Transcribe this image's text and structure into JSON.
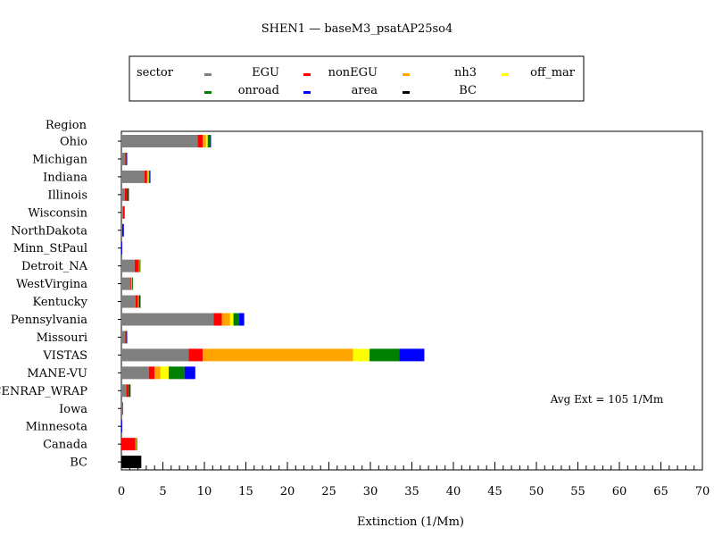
{
  "chart_data": {
    "type": "bar",
    "orientation": "horizontal",
    "stacked": true,
    "title": "SHEN1 — baseM3_psatAP25so4",
    "xlabel": "Extinction (1/Mm)",
    "ylabel": "Region",
    "xlim": [
      0,
      70
    ],
    "x_ticks": [
      0,
      5,
      10,
      15,
      20,
      25,
      30,
      35,
      40,
      45,
      50,
      55,
      60,
      65,
      70
    ],
    "legend_title": "sector",
    "legend_position": "top",
    "annotation": "Avg Ext =  105 1/Mm",
    "categories": [
      "Ohio",
      "Michigan",
      "Indiana",
      "Illinois",
      "Wisconsin",
      "NorthDakota",
      "Minn_StPaul",
      "Detroit_NA",
      "WestVirgina",
      "Kentucky",
      "Pennsylvania",
      "Missouri",
      "VISTAS",
      "MANE-VU",
      "CENRAP_WRAP",
      "Iowa",
      "Minnesota",
      "Canada",
      "BC"
    ],
    "series": [
      {
        "name": "EGU",
        "color": "#808080",
        "values": [
          9.2,
          0.4,
          2.8,
          0.4,
          0.2,
          0.1,
          0.0,
          1.6,
          1.1,
          1.7,
          11.1,
          0.4,
          8.1,
          3.3,
          0.6,
          0.1,
          0.0,
          0.0,
          0.0
        ]
      },
      {
        "name": "nonEGU",
        "color": "#ff0000",
        "values": [
          0.6,
          0.1,
          0.3,
          0.3,
          0.2,
          0.0,
          0.0,
          0.5,
          0.1,
          0.3,
          1.0,
          0.1,
          1.7,
          0.7,
          0.3,
          0.1,
          0.0,
          1.7,
          0.0
        ]
      },
      {
        "name": "nh3",
        "color": "#ffa500",
        "values": [
          0.4,
          0.0,
          0.1,
          0.0,
          0.0,
          0.0,
          0.0,
          0.1,
          0.1,
          0.1,
          1.0,
          0.0,
          18.1,
          0.7,
          0.0,
          0.0,
          0.0,
          0.1,
          0.0
        ]
      },
      {
        "name": "off_mar",
        "color": "#ffff00",
        "values": [
          0.2,
          0.0,
          0.1,
          0.0,
          0.0,
          0.0,
          0.0,
          0.0,
          0.0,
          0.0,
          0.4,
          0.0,
          2.0,
          1.0,
          0.0,
          0.0,
          0.0,
          0.0,
          0.0
        ]
      },
      {
        "name": "onroad",
        "color": "#008000",
        "values": [
          0.3,
          0.1,
          0.1,
          0.1,
          0.0,
          0.0,
          0.0,
          0.1,
          0.1,
          0.1,
          0.7,
          0.1,
          3.6,
          1.9,
          0.1,
          0.0,
          0.0,
          0.1,
          0.0
        ]
      },
      {
        "name": "area",
        "color": "#0000ff",
        "values": [
          0.1,
          0.1,
          0.1,
          0.0,
          0.0,
          0.2,
          0.1,
          0.0,
          0.0,
          0.0,
          0.6,
          0.1,
          3.0,
          1.3,
          0.0,
          0.0,
          0.1,
          0.0,
          0.0
        ]
      },
      {
        "name": "BC",
        "color": "#000000",
        "values": [
          0.0,
          0.0,
          0.0,
          0.1,
          0.0,
          0.0,
          0.0,
          0.0,
          0.0,
          0.1,
          0.0,
          0.0,
          0.0,
          0.0,
          0.1,
          0.0,
          0.0,
          0.0,
          2.4
        ]
      }
    ]
  }
}
